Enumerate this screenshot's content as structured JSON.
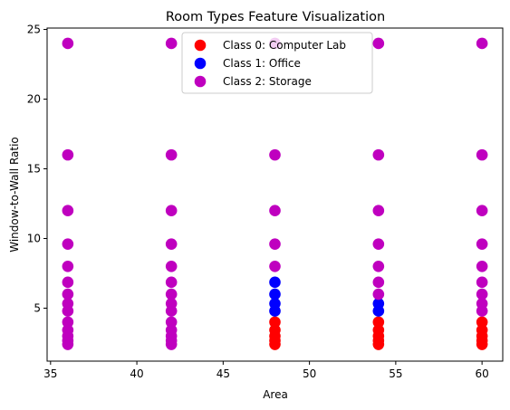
{
  "chart_data": {
    "type": "scatter",
    "title": "Room Types Feature Visualization",
    "xlabel": "Area",
    "ylabel": "Window-to-Wall Ratio",
    "xlim": [
      34.8,
      61.2
    ],
    "ylim": [
      1.2,
      25.1
    ],
    "xticks": [
      35,
      40,
      45,
      50,
      55,
      60
    ],
    "yticks": [
      5,
      10,
      15,
      20,
      25
    ],
    "grid": false,
    "legend_position": "top-center",
    "series": [
      {
        "name": "Class 0: Computer Lab",
        "color": "#ff0000",
        "points": [
          [
            48,
            2.4
          ],
          [
            48,
            2.67
          ],
          [
            48,
            3.0
          ],
          [
            48,
            3.43
          ],
          [
            48,
            4.0
          ],
          [
            54,
            2.4
          ],
          [
            54,
            2.67
          ],
          [
            54,
            3.0
          ],
          [
            54,
            3.43
          ],
          [
            54,
            4.0
          ],
          [
            60,
            2.4
          ],
          [
            60,
            2.67
          ],
          [
            60,
            3.0
          ],
          [
            60,
            3.43
          ],
          [
            60,
            4.0
          ]
        ]
      },
      {
        "name": "Class 1: Office",
        "color": "#0000ff",
        "points": [
          [
            48,
            4.8
          ],
          [
            48,
            5.33
          ],
          [
            48,
            6.0
          ],
          [
            48,
            6.86
          ],
          [
            54,
            4.8
          ],
          [
            54,
            5.33
          ]
        ]
      },
      {
        "name": "Class 2: Storage",
        "color": "#bf00bf",
        "points": [
          [
            36,
            2.4
          ],
          [
            36,
            2.67
          ],
          [
            36,
            3.0
          ],
          [
            36,
            3.43
          ],
          [
            36,
            4.0
          ],
          [
            36,
            4.8
          ],
          [
            36,
            5.33
          ],
          [
            36,
            6.0
          ],
          [
            36,
            6.86
          ],
          [
            36,
            8.0
          ],
          [
            36,
            9.6
          ],
          [
            36,
            12.0
          ],
          [
            36,
            16.0
          ],
          [
            36,
            24.0
          ],
          [
            42,
            2.4
          ],
          [
            42,
            2.67
          ],
          [
            42,
            3.0
          ],
          [
            42,
            3.43
          ],
          [
            42,
            4.0
          ],
          [
            42,
            4.8
          ],
          [
            42,
            5.33
          ],
          [
            42,
            6.0
          ],
          [
            42,
            6.86
          ],
          [
            42,
            8.0
          ],
          [
            42,
            9.6
          ],
          [
            42,
            12.0
          ],
          [
            42,
            16.0
          ],
          [
            42,
            24.0
          ],
          [
            48,
            8.0
          ],
          [
            48,
            9.6
          ],
          [
            48,
            12.0
          ],
          [
            48,
            16.0
          ],
          [
            48,
            24.0
          ],
          [
            54,
            6.0
          ],
          [
            54,
            6.86
          ],
          [
            54,
            8.0
          ],
          [
            54,
            9.6
          ],
          [
            54,
            12.0
          ],
          [
            54,
            16.0
          ],
          [
            54,
            24.0
          ],
          [
            60,
            4.8
          ],
          [
            60,
            5.33
          ],
          [
            60,
            6.0
          ],
          [
            60,
            6.86
          ],
          [
            60,
            8.0
          ],
          [
            60,
            9.6
          ],
          [
            60,
            12.0
          ],
          [
            60,
            16.0
          ],
          [
            60,
            24.0
          ]
        ]
      }
    ]
  }
}
